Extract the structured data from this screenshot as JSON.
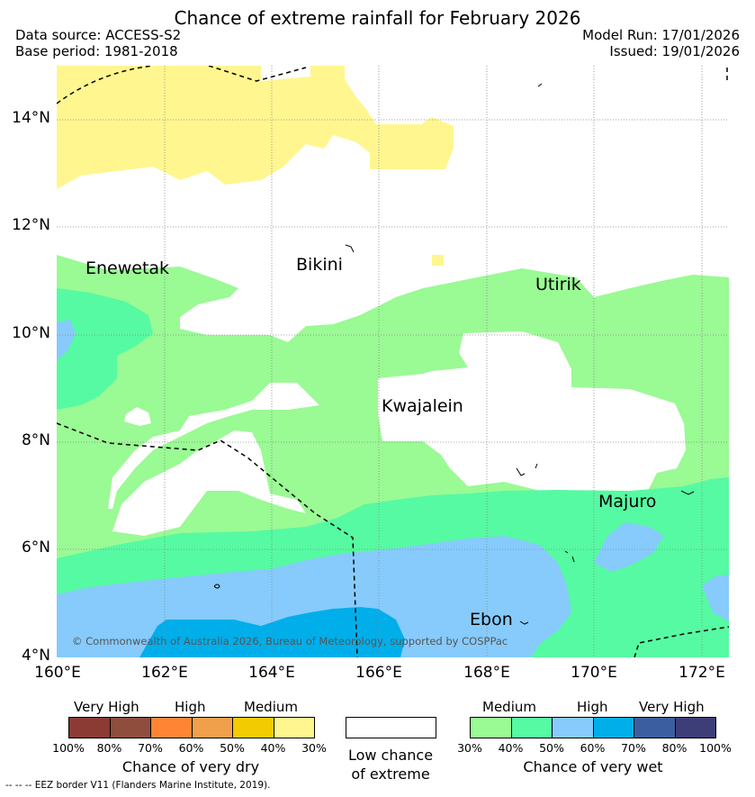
{
  "title": "Chance of extreme rainfall for February 2026",
  "data_source": "Data source: ACCESS-S2",
  "base_period": "Base period: 1981-2018",
  "model_run": "Model Run: 17/01/2026",
  "issued": "Issued: 19/01/2026",
  "lat_labels": [
    "14°N",
    "12°N",
    "10°N",
    "8°N",
    "6°N",
    "4°N"
  ],
  "lon_labels": [
    "160°E",
    "162°E",
    "164°E",
    "166°E",
    "168°E",
    "170°E",
    "172°E"
  ],
  "places": {
    "enewetak": "Enewetak",
    "bikini": "Bikini",
    "utirik": "Utirik",
    "kwajalein": "Kwajalein",
    "majuro": "Majuro",
    "ebon": "Ebon"
  },
  "copyright": "© Commonwealth of Australia 2026, Bureau of Meteorology, supported by COSPPac",
  "legend": {
    "dry": {
      "levels": [
        "Very High",
        "High",
        "Medium"
      ],
      "colors": [
        "#8b3a34",
        "#8f4e3d",
        "#ff8535",
        "#f0a04b",
        "#f2cb00",
        "#fff68f"
      ],
      "ticks": [
        "100%",
        "80%",
        "70%",
        "60%",
        "50%",
        "40%",
        "30%"
      ],
      "caption": "Chance of very dry"
    },
    "low": {
      "color": "#ffffff",
      "caption_line1": "Low chance",
      "caption_line2": "of extreme"
    },
    "wet": {
      "levels": [
        "Medium",
        "High",
        "Very High"
      ],
      "colors": [
        "#9afa94",
        "#56faa2",
        "#86cbfc",
        "#00aeea",
        "#3b5ea0",
        "#3d3d78"
      ],
      "ticks": [
        "30%",
        "40%",
        "50%",
        "60%",
        "70%",
        "80%",
        "100%"
      ],
      "caption": "Chance of very wet"
    }
  },
  "eez_note": "--  --  -- EEZ border V11 (Flanders Marine Institute, 2019)."
}
